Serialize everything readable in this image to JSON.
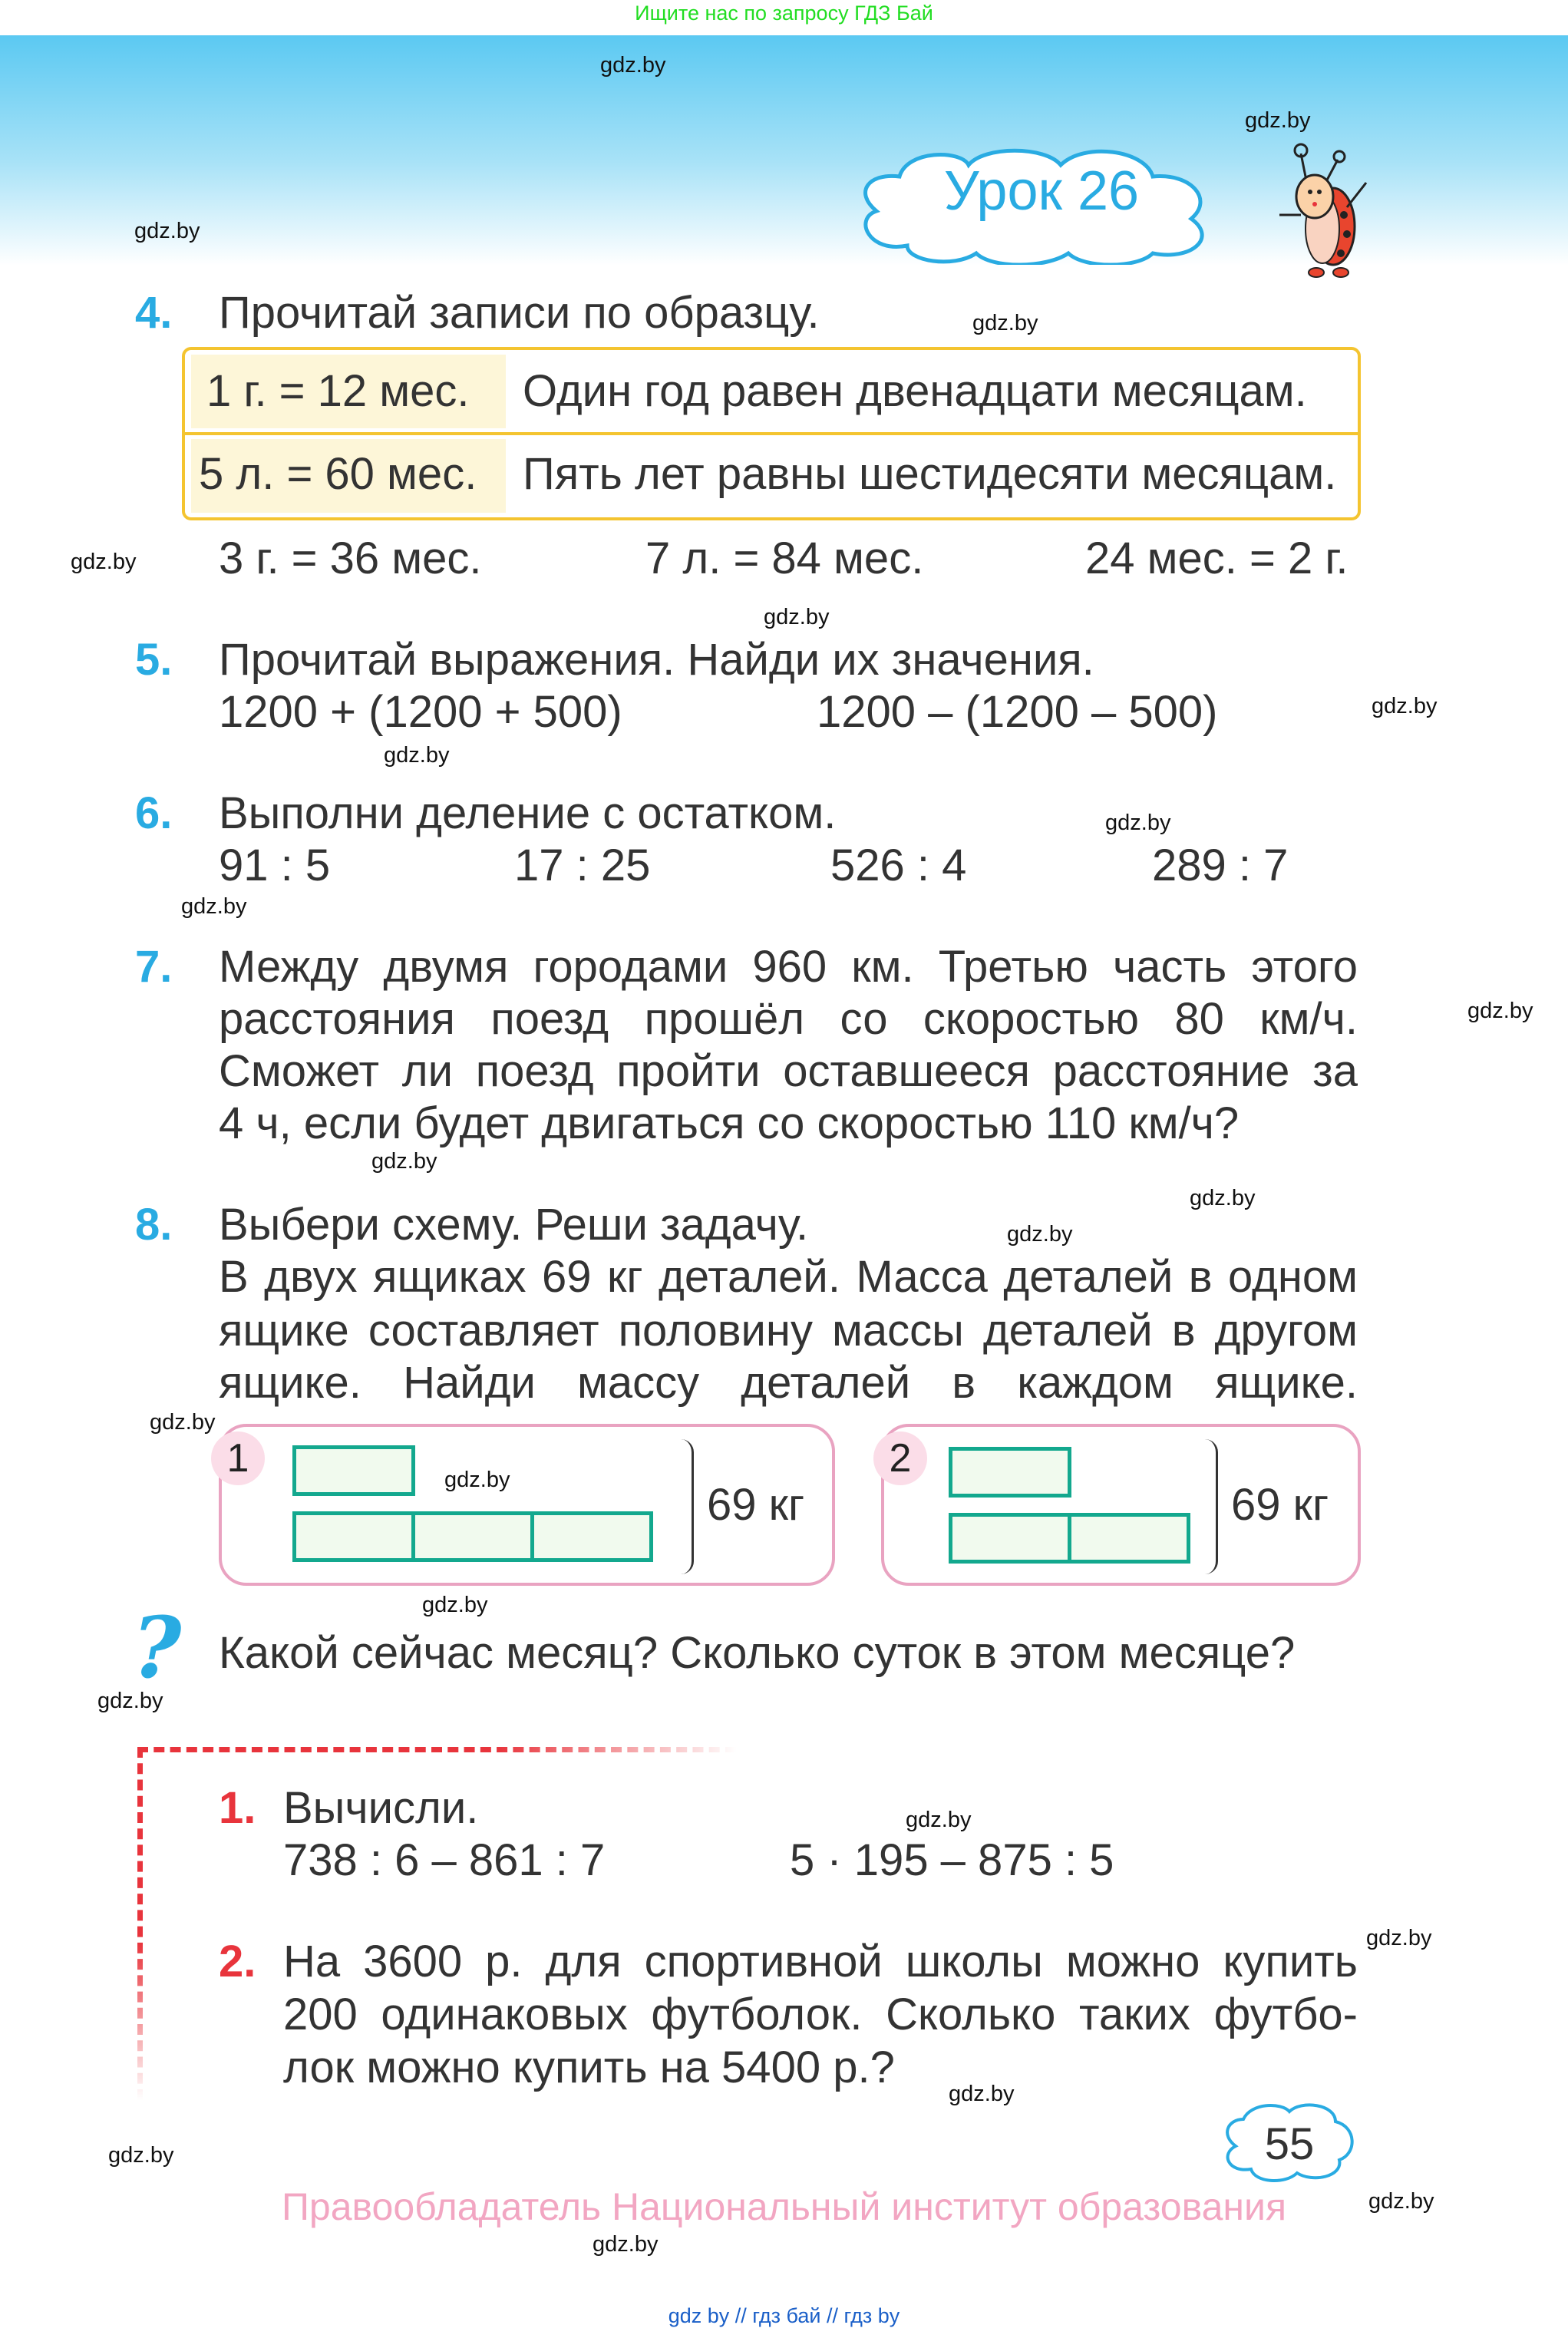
{
  "banner": {
    "text": "Ищите нас по запросу ГДЗ Бай"
  },
  "header": {
    "lesson_title": "Урок 26"
  },
  "task4": {
    "number": "4.",
    "title": "Прочитай записи по образцу.",
    "examples": [
      {
        "formula": "1 г. = 12 мес.",
        "reading": "Один год равен двенадцати месяцам."
      },
      {
        "formula": "5 л. = 60 мес.",
        "reading": "Пять лет равны шестидесяти месяцам."
      }
    ],
    "items": [
      "3 г. = 36 мес.",
      "7 л. = 84 мес.",
      "24 мес. = 2 г."
    ]
  },
  "task5": {
    "number": "5.",
    "title": "Прочитай выражения. Найди их значения.",
    "items": [
      "1200 + (1200 + 500)",
      "1200 – (1200 – 500)"
    ]
  },
  "task6": {
    "number": "6.",
    "title": "Выполни деление с остатком.",
    "items": [
      "91 : 5",
      "17 : 25",
      "526 : 4",
      "289 : 7"
    ]
  },
  "task7": {
    "number": "7.",
    "lines": [
      "Между двумя городами 960 км. Третью часть этого",
      "расстояния поезд прошёл со скоростью 80 км/ч.",
      "Сможет ли поезд пройти оставшееся расстояние за",
      "4 ч, если будет двигаться со скоростью 110 км/ч?"
    ]
  },
  "task8": {
    "number": "8.",
    "lines": [
      "Выбери схему. Реши задачу.",
      "В двух ящиках 69 кг деталей. Масса деталей в одном",
      "ящике составляет половину массы деталей в другом",
      "ящике. Найди массу деталей в каждом ящике."
    ],
    "schemes": [
      {
        "label": "1",
        "total": "69 кг",
        "top_segments": 1,
        "bottom_segments": 3
      },
      {
        "label": "2",
        "total": "69 кг",
        "top_segments": 1,
        "bottom_segments": 2
      }
    ]
  },
  "question": {
    "icon": "question-mark-icon",
    "text": "Какой сейчас месяц? Сколько суток в этом месяце?"
  },
  "homework": {
    "task1": {
      "number": "1.",
      "title": "Вычисли.",
      "items": [
        "738 : 6 – 861 : 7",
        "5 · 195 – 875 : 5"
      ]
    },
    "task2": {
      "number": "2.",
      "lines": [
        "На 3600 р. для спортивной школы можно купить",
        "200 одинаковых футболок. Сколько таких футбо-",
        "лок можно купить на 5400 р.?"
      ]
    }
  },
  "page_number": "55",
  "copyright": "Правообладатель Национальный институт образования",
  "footer_links": "gdz by  //  гдз бай  //  гдз by",
  "watermark": "gdz.by",
  "colors": {
    "accent_blue": "#29abe2",
    "accent_red": "#e8343c",
    "yellow_border": "#f4c430",
    "scheme_border": "#e9a3c1",
    "segment": "#13a88e"
  }
}
